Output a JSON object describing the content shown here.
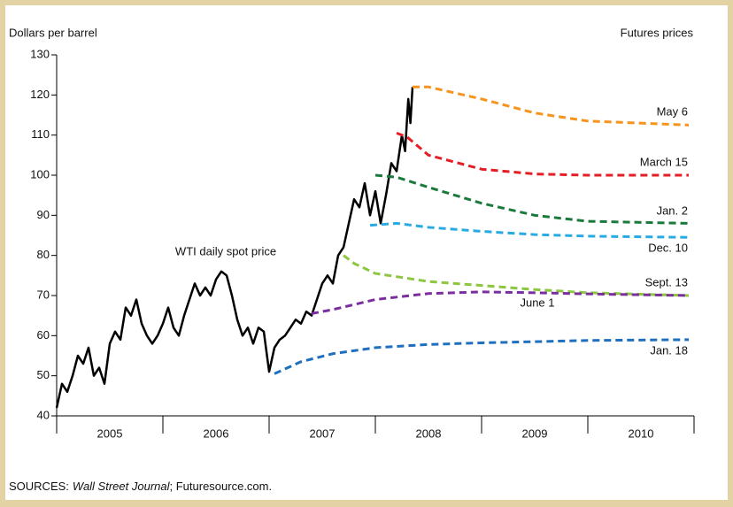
{
  "chart_data": {
    "type": "line",
    "y_axis_label": "Dollars per barrel",
    "legend_title": "Futures prices",
    "source_note": [
      "SOURCES:",
      "Wall Street Journal",
      "; Futuresource.com."
    ],
    "xlim": [
      2005,
      2011
    ],
    "xtick_marks": [
      2005,
      2006,
      2007,
      2008,
      2009,
      2010,
      2011
    ],
    "xticks": [
      {
        "value": 2005.5,
        "label": "2005"
      },
      {
        "value": 2006.5,
        "label": "2006"
      },
      {
        "value": 2007.5,
        "label": "2007"
      },
      {
        "value": 2008.5,
        "label": "2008"
      },
      {
        "value": 2009.5,
        "label": "2009"
      },
      {
        "value": 2010.5,
        "label": "2010"
      }
    ],
    "ylim": [
      40,
      130
    ],
    "yticks": [
      40,
      50,
      60,
      70,
      80,
      90,
      100,
      110,
      120,
      130
    ],
    "grid": false,
    "series": [
      {
        "name": "WTI daily spot price",
        "color": "#000000",
        "style": "solid",
        "x": [
          2005.0,
          2005.05,
          2005.1,
          2005.15,
          2005.2,
          2005.25,
          2005.3,
          2005.35,
          2005.4,
          2005.45,
          2005.5,
          2005.55,
          2005.6,
          2005.65,
          2005.7,
          2005.75,
          2005.8,
          2005.85,
          2005.9,
          2005.95,
          2006.0,
          2006.05,
          2006.1,
          2006.15,
          2006.2,
          2006.25,
          2006.3,
          2006.35,
          2006.4,
          2006.45,
          2006.5,
          2006.55,
          2006.6,
          2006.65,
          2006.7,
          2006.75,
          2006.8,
          2006.85,
          2006.9,
          2006.95,
          2007.0,
          2007.05,
          2007.1,
          2007.15,
          2007.2,
          2007.25,
          2007.3,
          2007.35,
          2007.4,
          2007.45,
          2007.5,
          2007.55,
          2007.6,
          2007.65,
          2007.7,
          2007.75,
          2007.8,
          2007.85,
          2007.9,
          2007.95,
          2008.0,
          2008.05,
          2008.1,
          2008.15,
          2008.2,
          2008.25,
          2008.28,
          2008.31,
          2008.33,
          2008.35
        ],
        "values": [
          42,
          48,
          46,
          50,
          55,
          53,
          57,
          50,
          52,
          48,
          58,
          61,
          59,
          67,
          65,
          69,
          63,
          60,
          58,
          60,
          63,
          67,
          62,
          60,
          65,
          69,
          73,
          70,
          72,
          70,
          74,
          76,
          75,
          70,
          64,
          60,
          62,
          58,
          62,
          61,
          51,
          57,
          59,
          60,
          62,
          64,
          63,
          66,
          65,
          69,
          73,
          75,
          73,
          80,
          82,
          88,
          94,
          92,
          98,
          90,
          96,
          88,
          95,
          103,
          101,
          110,
          106,
          119,
          113,
          122
        ]
      },
      {
        "name": "May 6",
        "color": "#f7941d",
        "style": "dashed",
        "x": [
          2008.35,
          2008.5,
          2009.0,
          2009.5,
          2010.0,
          2010.95
        ],
        "values": [
          122,
          122,
          119,
          115.5,
          113.5,
          112.5
        ]
      },
      {
        "name": "March 15",
        "color": "#e31e24",
        "style": "dashed",
        "x": [
          2008.2,
          2008.3,
          2008.5,
          2009.0,
          2009.5,
          2010.0,
          2010.95
        ],
        "values": [
          110.5,
          109.5,
          105,
          101.5,
          100.3,
          100,
          100
        ]
      },
      {
        "name": "Jan. 2",
        "color": "#1a7a3c",
        "style": "dashed",
        "x": [
          2008.0,
          2008.2,
          2008.5,
          2009.0,
          2009.5,
          2010.0,
          2010.95
        ],
        "values": [
          100,
          99.5,
          97,
          93,
          90,
          88.5,
          88
        ]
      },
      {
        "name": "Dec. 10",
        "color": "#29abe2",
        "style": "dashed",
        "x": [
          2007.95,
          2008.2,
          2008.5,
          2009.0,
          2009.5,
          2010.0,
          2010.95
        ],
        "values": [
          87.5,
          88,
          87,
          86,
          85.2,
          84.8,
          84.5
        ]
      },
      {
        "name": "Sept. 13",
        "color": "#8dc63f",
        "style": "dashed",
        "x": [
          2007.7,
          2007.8,
          2008.0,
          2008.5,
          2009.0,
          2009.5,
          2010.0,
          2010.95
        ],
        "values": [
          80,
          78,
          75.5,
          73.5,
          72.5,
          71.5,
          70.7,
          70
        ]
      },
      {
        "name": "June 1",
        "color": "#7b2f9e",
        "style": "dashed",
        "x": [
          2007.4,
          2007.6,
          2008.0,
          2008.5,
          2009.0,
          2009.5,
          2010.0,
          2010.95
        ],
        "values": [
          65.5,
          66.5,
          69,
          70.5,
          70.9,
          70.7,
          70.4,
          70
        ]
      },
      {
        "name": "Jan. 18",
        "color": "#1f6fbf",
        "style": "dashed",
        "x": [
          2007.05,
          2007.3,
          2007.6,
          2008.0,
          2008.5,
          2009.0,
          2009.5,
          2010.0,
          2010.95
        ],
        "values": [
          50.5,
          53.5,
          55.5,
          57,
          57.8,
          58.2,
          58.5,
          58.8,
          59
        ]
      }
    ]
  }
}
